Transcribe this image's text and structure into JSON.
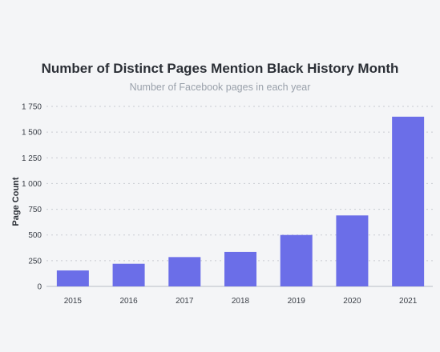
{
  "chart_data": {
    "type": "bar",
    "title": "Number of Distinct Pages Mention Black History Month",
    "subtitle": "Number of Facebook pages in each year",
    "xlabel": "",
    "ylabel": "Page Count",
    "categories": [
      "2015",
      "2016",
      "2017",
      "2018",
      "2019",
      "2020",
      "2021"
    ],
    "values": [
      155,
      220,
      285,
      335,
      500,
      690,
      1650
    ],
    "ylim": [
      0,
      1750
    ],
    "yticks": [
      0,
      250,
      500,
      750,
      1000,
      1250,
      1500,
      1750
    ],
    "ytick_labels": [
      "0",
      "250",
      "500",
      "750",
      "1 000",
      "1 250",
      "1 500",
      "1 750"
    ],
    "grid": true,
    "bar_color": "#6b6ee8"
  }
}
